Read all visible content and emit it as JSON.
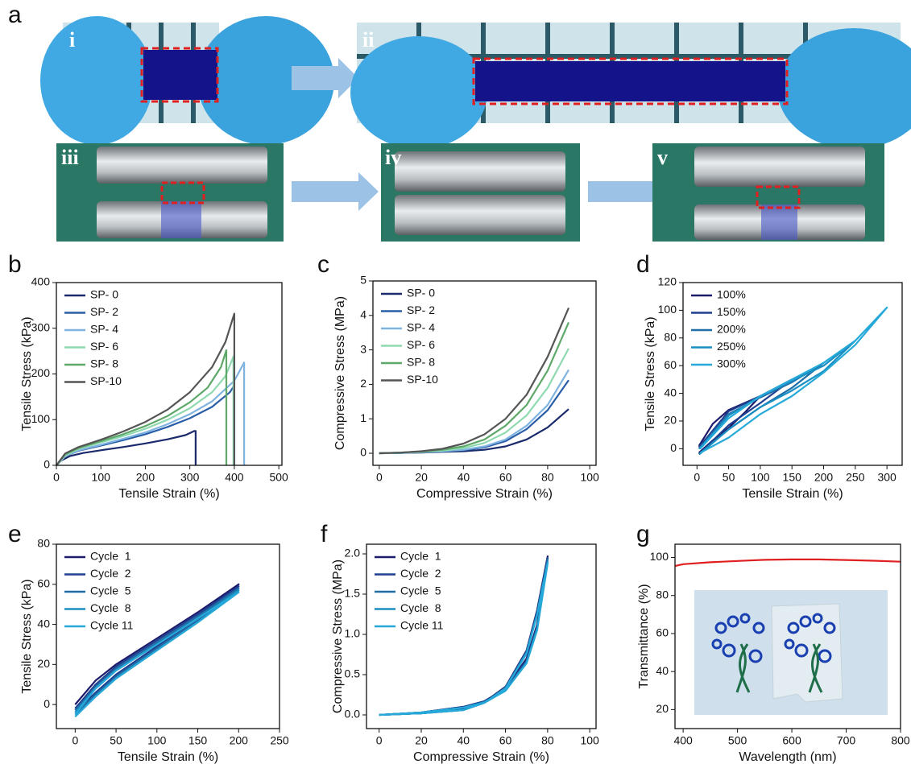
{
  "figure": {
    "label": "a",
    "photos": [
      "i",
      "ii",
      "iii",
      "iv",
      "v"
    ]
  },
  "chart_data": [
    {
      "type": "line",
      "panel": "b",
      "xlabel": "Tensile Strain (%)",
      "ylabel": "Tensile Stress (kPa)",
      "xlim": [
        0,
        507
      ],
      "xticks": [
        0,
        100,
        200,
        300,
        400,
        500
      ],
      "ylim": [
        0,
        400
      ],
      "yticks": [
        0,
        100,
        200,
        300,
        400
      ],
      "legend": "upper left",
      "series": [
        {
          "name": "SP- 0",
          "color": "#1a2a6c",
          "x": [
            0,
            10,
            30,
            60,
            100,
            150,
            200,
            250,
            290,
            310,
            313,
            313
          ],
          "values": [
            0,
            10,
            20,
            27,
            33,
            40,
            48,
            57,
            66,
            75,
            75,
            0
          ]
        },
        {
          "name": "SP- 2",
          "color": "#2b5ea8",
          "x": [
            0,
            20,
            50,
            100,
            150,
            200,
            250,
            300,
            350,
            390,
            400,
            400
          ],
          "values": [
            0,
            20,
            32,
            43,
            55,
            68,
            84,
            103,
            128,
            160,
            175,
            0
          ]
        },
        {
          "name": "SP- 4",
          "color": "#7fb3e0",
          "x": [
            0,
            20,
            50,
            100,
            150,
            200,
            250,
            300,
            350,
            400,
            422,
            422
          ],
          "values": [
            0,
            20,
            33,
            45,
            58,
            72,
            90,
            112,
            140,
            185,
            225,
            0
          ]
        },
        {
          "name": "SP- 6",
          "color": "#8fd9b0",
          "x": [
            0,
            20,
            50,
            100,
            150,
            200,
            250,
            300,
            350,
            380,
            398,
            398
          ],
          "values": [
            0,
            22,
            36,
            50,
            64,
            80,
            100,
            125,
            160,
            195,
            238,
            0
          ]
        },
        {
          "name": "SP- 8",
          "color": "#5ea86a",
          "x": [
            0,
            20,
            50,
            100,
            150,
            200,
            250,
            300,
            340,
            370,
            382,
            382
          ],
          "values": [
            0,
            24,
            38,
            53,
            68,
            86,
            108,
            138,
            170,
            215,
            252,
            0
          ]
        },
        {
          "name": "SP-10",
          "color": "#555555",
          "x": [
            0,
            20,
            50,
            100,
            150,
            200,
            250,
            300,
            350,
            380,
            400,
            400
          ],
          "values": [
            0,
            26,
            40,
            56,
            74,
            95,
            122,
            160,
            215,
            270,
            332,
            0
          ]
        }
      ]
    },
    {
      "type": "line",
      "panel": "c",
      "xlabel": "Compressive Strain (%)",
      "ylabel": "Compressive Stress (MPa)",
      "xlim": [
        -3,
        103
      ],
      "xticks": [
        0,
        20,
        40,
        60,
        80,
        100
      ],
      "ylim": [
        -0.35,
        5
      ],
      "yticks": [
        0,
        1,
        2,
        3,
        4,
        5
      ],
      "legend": "upper left",
      "x": [
        0,
        10,
        20,
        30,
        40,
        50,
        60,
        70,
        80,
        90
      ],
      "series": [
        {
          "name": "SP- 0",
          "color": "#1a2a6c",
          "values": [
            0,
            0.01,
            0.02,
            0.04,
            0.06,
            0.1,
            0.2,
            0.4,
            0.75,
            1.28
          ]
        },
        {
          "name": "SP- 2",
          "color": "#2b5ea8",
          "values": [
            0,
            0.01,
            0.03,
            0.05,
            0.09,
            0.17,
            0.35,
            0.7,
            1.25,
            2.12
          ]
        },
        {
          "name": "SP- 4",
          "color": "#7fb3e0",
          "values": [
            0,
            0.01,
            0.03,
            0.06,
            0.1,
            0.2,
            0.4,
            0.8,
            1.4,
            2.42
          ]
        },
        {
          "name": "SP- 6",
          "color": "#8fd9b0",
          "values": [
            0,
            0.02,
            0.04,
            0.08,
            0.15,
            0.3,
            0.6,
            1.1,
            1.9,
            3.04
          ]
        },
        {
          "name": "SP- 8",
          "color": "#5ea86a",
          "values": [
            0,
            0.02,
            0.05,
            0.1,
            0.2,
            0.4,
            0.8,
            1.4,
            2.4,
            3.8
          ]
        },
        {
          "name": "SP-10",
          "color": "#555555",
          "values": [
            0,
            0.02,
            0.06,
            0.13,
            0.28,
            0.55,
            1.0,
            1.7,
            2.8,
            4.22
          ]
        }
      ]
    },
    {
      "type": "line",
      "panel": "d",
      "xlabel": "Tensile Strain (%)",
      "ylabel": "Tensile Stress (kPa)",
      "xlim": [
        -22,
        324
      ],
      "xticks": [
        0,
        50,
        100,
        150,
        200,
        250,
        300
      ],
      "ylim": [
        -12,
        120
      ],
      "yticks": [
        0,
        20,
        40,
        60,
        80,
        100,
        120
      ],
      "legend": "upper left",
      "series": [
        {
          "name": "100%",
          "color": "#1c1a6b",
          "x": [
            3,
            25,
            50,
            75,
            100,
            75,
            50,
            25,
            3
          ],
          "values": [
            2,
            18,
            28,
            33,
            38,
            26,
            15,
            6,
            -3
          ]
        },
        {
          "name": "150%",
          "color": "#1e3f8f",
          "x": [
            3,
            50,
            100,
            150,
            100,
            50,
            3
          ],
          "values": [
            1,
            27,
            38,
            50,
            33,
            17,
            -4
          ]
        },
        {
          "name": "200%",
          "color": "#1f6ea8",
          "x": [
            3,
            50,
            100,
            150,
            200,
            150,
            100,
            50,
            3
          ],
          "values": [
            0,
            25,
            37,
            48,
            62,
            44,
            30,
            14,
            -4
          ]
        },
        {
          "name": "250%",
          "color": "#1a8fc2",
          "x": [
            4,
            50,
            100,
            150,
            200,
            250,
            200,
            150,
            100,
            50,
            4
          ],
          "values": [
            0,
            24,
            38,
            49,
            60,
            78,
            56,
            42,
            30,
            14,
            -4
          ]
        },
        {
          "name": "300%",
          "color": "#26a9d9",
          "x": [
            5,
            50,
            100,
            150,
            200,
            250,
            300,
            250,
            200,
            150,
            100,
            50,
            5
          ],
          "values": [
            0,
            22,
            38,
            50,
            62,
            78,
            102,
            75,
            55,
            38,
            25,
            8,
            -3
          ]
        }
      ]
    },
    {
      "type": "line",
      "panel": "e",
      "xlabel": "Tensile Strain (%)",
      "ylabel": "Tensile Stress (kPa)",
      "xlim": [
        -23,
        250
      ],
      "xticks": [
        0,
        50,
        100,
        150,
        200,
        250
      ],
      "ylim": [
        -12,
        80
      ],
      "yticks": [
        0,
        20,
        40,
        60,
        80
      ],
      "legend": "upper left",
      "x": [
        0,
        25,
        50,
        100,
        150,
        200,
        150,
        100,
        50,
        25,
        0
      ],
      "series": [
        {
          "name": "Cycle  1",
          "color": "#1c1a6b",
          "values": [
            0,
            12,
            20,
            33,
            46,
            60,
            44,
            30,
            17,
            8,
            -2
          ]
        },
        {
          "name": "Cycle  2",
          "color": "#1e3f8f",
          "values": [
            -2,
            10,
            19,
            32,
            45,
            59,
            43,
            29,
            15,
            6,
            -4
          ]
        },
        {
          "name": "Cycle  5",
          "color": "#1f6ea8",
          "values": [
            -3,
            9,
            18,
            31,
            44,
            58,
            42,
            28,
            14,
            5,
            -5
          ]
        },
        {
          "name": "Cycle  8",
          "color": "#1a8fc2",
          "values": [
            -4,
            8,
            17,
            30,
            43,
            57,
            41,
            27,
            13,
            4,
            -6
          ]
        },
        {
          "name": "Cycle 11",
          "color": "#26a9d9",
          "values": [
            -5,
            8,
            17,
            30,
            43,
            56,
            41,
            27,
            13,
            4,
            -6
          ]
        }
      ]
    },
    {
      "type": "line",
      "panel": "f",
      "xlabel": "Compressive Strain (%)",
      "ylabel": "Compressive Stress (MPa)",
      "xlim": [
        -6,
        103
      ],
      "xticks": [
        0,
        20,
        40,
        60,
        80,
        100
      ],
      "ylim": [
        -0.17,
        2.12
      ],
      "yticks": [
        {
          "value": 0,
          "label": "0.0"
        },
        0.5,
        {
          "value": 1,
          "label": "1.0"
        },
        1.5,
        {
          "value": 2,
          "label": "2.0"
        }
      ],
      "legend": "upper left",
      "x": [
        0,
        20,
        40,
        50,
        60,
        70,
        75,
        80,
        75,
        70,
        60,
        50,
        40,
        20,
        0
      ],
      "series": [
        {
          "name": "Cycle  1",
          "color": "#1c1a6b",
          "values": [
            0,
            0.03,
            0.1,
            0.17,
            0.33,
            0.7,
            1.12,
            1.97,
            1.3,
            0.8,
            0.35,
            0.16,
            0.07,
            0.02,
            0
          ]
        },
        {
          "name": "Cycle  2",
          "color": "#1e3f8f",
          "values": [
            0,
            0.03,
            0.1,
            0.17,
            0.32,
            0.68,
            1.1,
            1.95,
            1.28,
            0.79,
            0.34,
            0.16,
            0.07,
            0.02,
            0
          ]
        },
        {
          "name": "Cycle  5",
          "color": "#1f6ea8",
          "values": [
            0,
            0.03,
            0.09,
            0.16,
            0.31,
            0.66,
            1.08,
            1.93,
            1.26,
            0.78,
            0.34,
            0.15,
            0.06,
            0.02,
            0
          ]
        },
        {
          "name": "Cycle  8",
          "color": "#1a8fc2",
          "values": [
            0,
            0.03,
            0.09,
            0.16,
            0.3,
            0.65,
            1.06,
            1.9,
            1.25,
            0.77,
            0.33,
            0.15,
            0.06,
            0.02,
            0
          ]
        },
        {
          "name": "Cycle 11",
          "color": "#26a9d9",
          "values": [
            0,
            0.03,
            0.09,
            0.15,
            0.3,
            0.64,
            1.05,
            1.88,
            1.24,
            0.76,
            0.33,
            0.15,
            0.06,
            0.02,
            0
          ]
        }
      ]
    },
    {
      "type": "line",
      "panel": "g",
      "xlabel": "Wavelength (nm)",
      "ylabel": "Transmittance (%)",
      "xlim": [
        385,
        800
      ],
      "xticks": [
        400,
        500,
        600,
        700,
        800
      ],
      "ylim": [
        10,
        107
      ],
      "yticks": [
        20,
        40,
        60,
        80,
        100
      ],
      "series": [
        {
          "color": "#e02020",
          "x": [
            385,
            400,
            450,
            500,
            550,
            600,
            650,
            700,
            750,
            800
          ],
          "values": [
            95.5,
            96.5,
            97.5,
            98.2,
            98.8,
            99,
            99,
            98.7,
            98.3,
            97.8
          ]
        }
      ]
    }
  ]
}
